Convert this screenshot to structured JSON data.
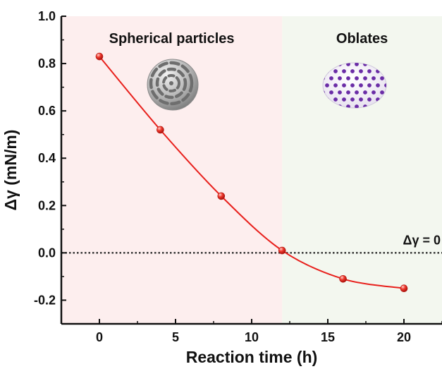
{
  "chart_data": {
    "type": "line",
    "xlabel": "Reaction time (h)",
    "ylabel": "Δγ (mN/m)",
    "xlim": [
      -2.5,
      22.5
    ],
    "ylim": [
      -0.3,
      1.0
    ],
    "xticks": [
      0,
      5,
      10,
      15,
      20
    ],
    "xtick_labels": [
      "0",
      "5",
      "10",
      "15",
      "20"
    ],
    "yticks": [
      -0.2,
      0.0,
      0.2,
      0.4,
      0.6,
      0.8,
      1.0
    ],
    "ytick_labels": [
      "-0.2",
      "0.0",
      "0.2",
      "0.4",
      "0.6",
      "0.8",
      "1.0"
    ],
    "grid": false,
    "series": [
      {
        "x": [
          0,
          4,
          8,
          12,
          16,
          20
        ],
        "y": [
          0.83,
          0.52,
          0.24,
          0.01,
          -0.11,
          -0.15
        ],
        "color": "#e8201c",
        "smooth": true,
        "marker": "sphere"
      }
    ],
    "reference_line": {
      "y": 0,
      "style": "dotted",
      "label": "Δγ = 0"
    },
    "regions": [
      {
        "label": "Spherical particles",
        "x_range": [
          -2.5,
          12
        ],
        "color": "#fdeeee",
        "icon": "sphere-particle-icon"
      },
      {
        "label": "Oblates",
        "x_range": [
          12,
          22.5
        ],
        "color": "#f3f7ef",
        "icon": "oblate-particle-icon"
      }
    ]
  }
}
